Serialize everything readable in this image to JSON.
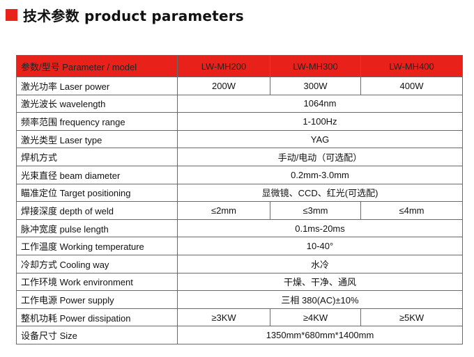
{
  "title": "技术参数  product parameters",
  "header": {
    "label": "参数/型号 Parameter / model",
    "models": [
      "LW-MH200",
      "LW-MH300",
      "LW-MH400"
    ]
  },
  "rows": [
    {
      "label": "激光功率 Laser power",
      "values": [
        "200W",
        "300W",
        "400W"
      ]
    },
    {
      "label": "激光波长 wavelength",
      "values": [
        "1064nm"
      ]
    },
    {
      "label": "频率范围  frequency range",
      "values": [
        "1-100Hz"
      ]
    },
    {
      "label": "激光类型 Laser type",
      "values": [
        "YAG"
      ]
    },
    {
      "label": "焊机方式",
      "values": [
        "手动/电动（可选配）"
      ]
    },
    {
      "label": "光束直径  beam diameter",
      "values": [
        "0.2mm-3.0mm"
      ]
    },
    {
      "label": "瞄准定位 Target positioning",
      "values": [
        "显微镜、CCD、红光(可选配)"
      ]
    },
    {
      "label": "焊接深度  depth of weld",
      "values": [
        "≤2mm",
        "≤3mm",
        "≤4mm"
      ]
    },
    {
      "label": "脉冲宽度 pulse length",
      "values": [
        "0.1ms-20ms"
      ]
    },
    {
      "label": "工作温度 Working temperature",
      "values": [
        "10-40°"
      ]
    },
    {
      "label": "冷却方式 Cooling way",
      "values": [
        "水冷"
      ]
    },
    {
      "label": "工作环境 Work environment",
      "values": [
        "干燥、干净、通风"
      ]
    },
    {
      "label": "工作电源 Power supply",
      "values": [
        "三相    380(AC)±10%"
      ]
    },
    {
      "label": "整机功耗 Power dissipation",
      "values": [
        "≥3KW",
        "≥4KW",
        "≥5KW"
      ]
    },
    {
      "label": "设备尺寸 Size",
      "values": [
        "1350mm*680mm*1400mm"
      ]
    }
  ],
  "colors": {
    "accent": "#e8221b"
  }
}
